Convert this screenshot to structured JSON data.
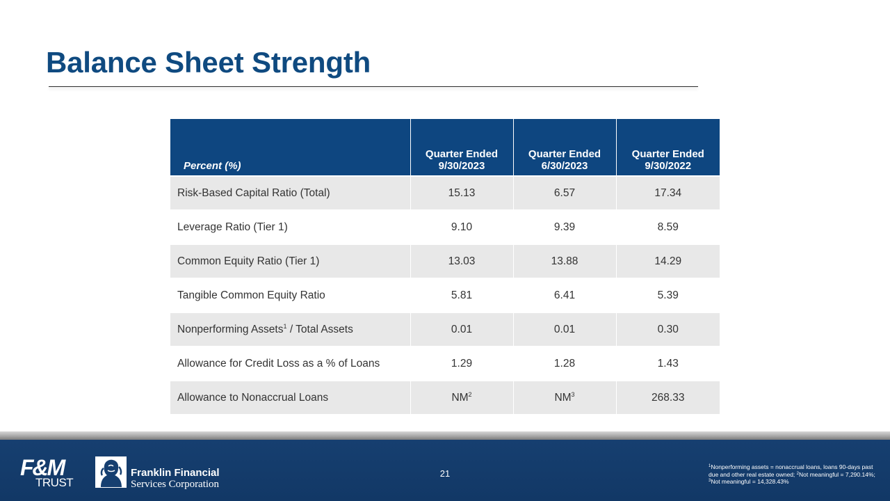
{
  "title": "Balance Sheet Strength",
  "table": {
    "label_header": "Percent (%)",
    "columns": [
      {
        "line1": "Quarter Ended",
        "line2": "9/30/2023"
      },
      {
        "line1": "Quarter Ended",
        "line2": "6/30/2023"
      },
      {
        "line1": "Quarter Ended",
        "line2": "9/30/2022"
      }
    ],
    "rows": [
      {
        "label": "Risk-Based Capital Ratio (Total)",
        "values": [
          "15.13",
          "6.57",
          "17.34"
        ]
      },
      {
        "label": "Leverage Ratio (Tier 1)",
        "values": [
          "9.10",
          "9.39",
          "8.59"
        ]
      },
      {
        "label": "Common Equity Ratio (Tier 1)",
        "values": [
          "13.03",
          "13.88",
          "14.29"
        ]
      },
      {
        "label": "Tangible Common Equity Ratio",
        "values": [
          "5.81",
          "6.41",
          "5.39"
        ]
      },
      {
        "label": "Nonperforming Assets",
        "label_sup": "1",
        "label_suffix": " / Total Assets",
        "values": [
          "0.01",
          "0.01",
          "0.30"
        ]
      },
      {
        "label": "Allowance for Credit Loss as a % of Loans",
        "values": [
          "1.29",
          "1.28",
          "1.43"
        ]
      },
      {
        "label": "Allowance to Nonaccrual Loans",
        "values": [
          "NM",
          "NM",
          "268.33"
        ],
        "value_sups": [
          "2",
          "3",
          ""
        ]
      }
    ]
  },
  "footer": {
    "page_number": "21",
    "fm_logo": {
      "mark": "F&M",
      "sub": "TRUST"
    },
    "ffs_logo": {
      "line1": "Franklin Financial",
      "line2": "Services Corporation",
      "emblem_icon": "franklin-portrait-icon"
    },
    "footnote": {
      "sup1": "1",
      "text1": "Nonperforming assets = nonaccrual loans, loans 90-days past due and other real estate owned; ",
      "sup2": "2",
      "text2": "Not meaningful = 7,290.14%; ",
      "sup3": "3",
      "text3": "Not meaningful = 14,328.43%"
    }
  },
  "colors": {
    "title": "#0f4a80",
    "table_header": "#0e4680",
    "row_shade": "#e8e8e8",
    "footer_band": "#163f70"
  }
}
